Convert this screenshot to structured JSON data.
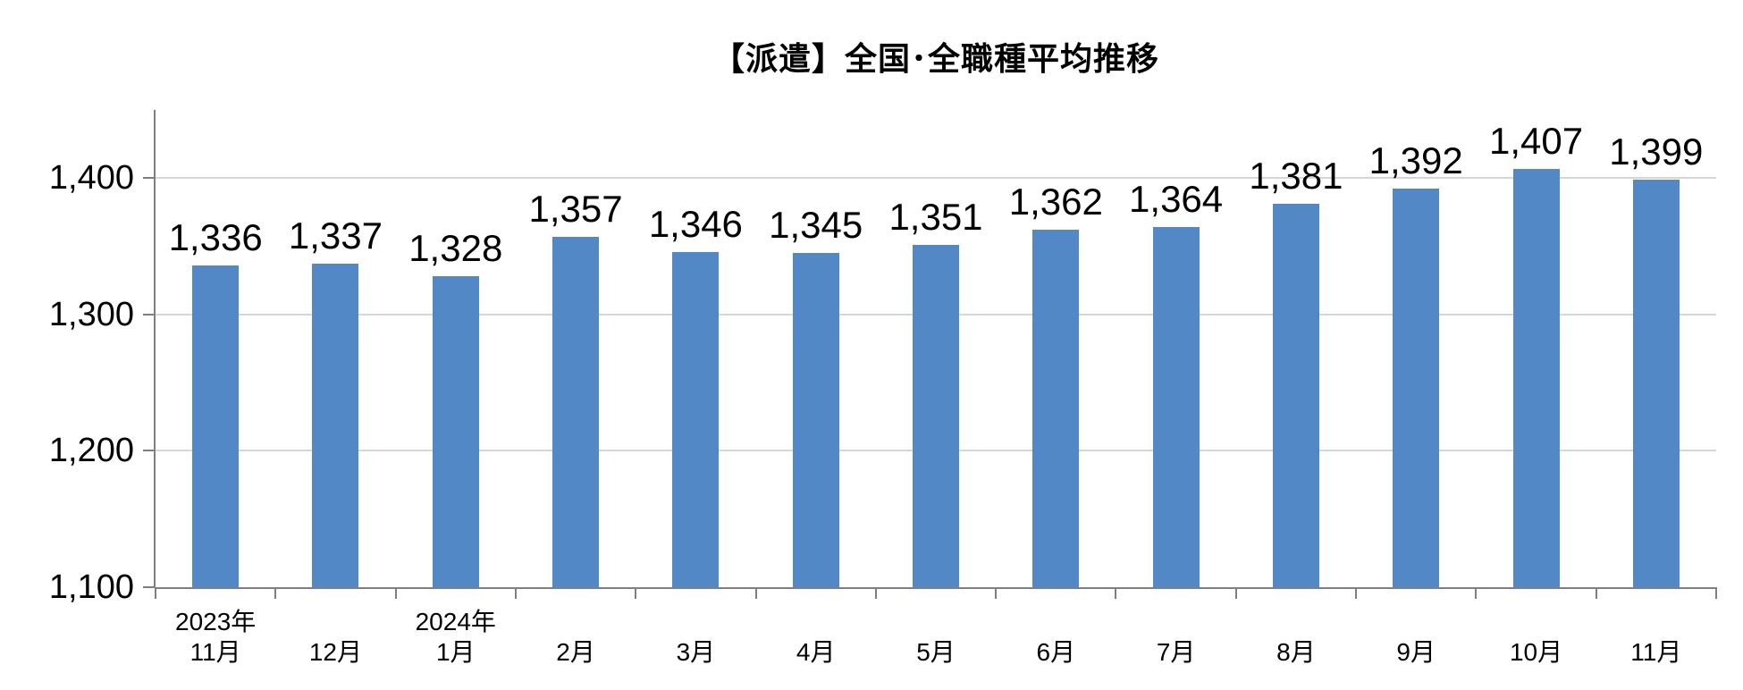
{
  "chart_data": {
    "type": "bar",
    "title": "【派遣】全国･全職種平均推移",
    "xlabel": "",
    "ylabel": "",
    "categories": [
      "11月",
      "12月",
      "1月",
      "2月",
      "3月",
      "4月",
      "5月",
      "6月",
      "7月",
      "8月",
      "9月",
      "10月",
      "11月"
    ],
    "year_labels": [
      {
        "index": 0,
        "label": "2023年"
      },
      {
        "index": 2,
        "label": "2024年"
      }
    ],
    "values": [
      1336,
      1337,
      1328,
      1357,
      1346,
      1345,
      1351,
      1362,
      1364,
      1381,
      1392,
      1407,
      1399
    ],
    "value_labels": [
      "1,336",
      "1,337",
      "1,328",
      "1,357",
      "1,346",
      "1,345",
      "1,351",
      "1,362",
      "1,364",
      "1,381",
      "1,392",
      "1,407",
      "1,399"
    ],
    "ylim": [
      1100,
      1450
    ],
    "yticks": [
      {
        "value": 1100,
        "label": "1,100"
      },
      {
        "value": 1200,
        "label": "1,200"
      },
      {
        "value": 1300,
        "label": "1,300"
      },
      {
        "value": 1400,
        "label": "1,400"
      }
    ],
    "grid": true,
    "legend": false,
    "colors": {
      "bar": "#5388C7",
      "gridline": "#D6D6D6",
      "axis": "#7F7F7F",
      "text": "#000000",
      "background": "#FFFFFF"
    }
  }
}
